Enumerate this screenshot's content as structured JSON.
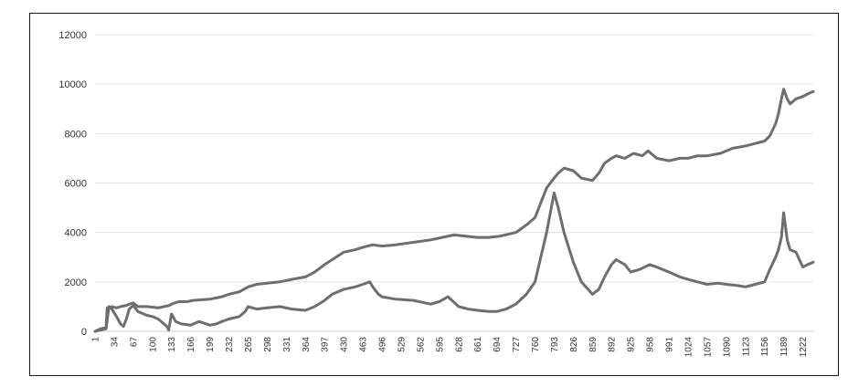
{
  "chart_data": {
    "type": "line",
    "title": "",
    "xlabel": "",
    "ylabel": "",
    "ylim": [
      0,
      12000
    ],
    "xlim": [
      1,
      1240
    ],
    "yticks": [
      "0",
      "2000",
      "4000",
      "6000",
      "8000",
      "10000",
      "12000"
    ],
    "xticks": [
      "1",
      "34",
      "67",
      "100",
      "133",
      "166",
      "199",
      "232",
      "265",
      "298",
      "331",
      "364",
      "397",
      "430",
      "463",
      "496",
      "529",
      "562",
      "595",
      "628",
      "661",
      "694",
      "727",
      "760",
      "793",
      "826",
      "859",
      "892",
      "925",
      "958",
      "991",
      "1024",
      "1057",
      "1090",
      "1123",
      "1156",
      "1189",
      "1222"
    ],
    "grid": "horizontal",
    "legend": "none",
    "line_color": "#6e6e6e",
    "series": [
      {
        "x": [
          1,
          10,
          20,
          22,
          30,
          38,
          45,
          55,
          60,
          67,
          75,
          90,
          110,
          120,
          130,
          133,
          145,
          160,
          170,
          199,
          220,
          232,
          250,
          265,
          280,
          298,
          320,
          340,
          364,
          380,
          397,
          410,
          430,
          450,
          463,
          480,
          496,
          520,
          550,
          580,
          600,
          620,
          640,
          661,
          680,
          700,
          727,
          745,
          760,
          770,
          780,
          793,
          800,
          810,
          826,
          840,
          859,
          870,
          880,
          892,
          900,
          915,
          930,
          945,
          955,
          970,
          991,
          1010,
          1024,
          1040,
          1057,
          1080,
          1100,
          1123,
          1140,
          1156,
          1165,
          1175,
          1180,
          1185,
          1189,
          1195,
          1200,
          1210,
          1222,
          1230,
          1240
        ],
        "values": [
          0,
          100,
          150,
          950,
          1000,
          950,
          1000,
          1050,
          1100,
          1150,
          1000,
          1000,
          950,
          1000,
          1050,
          1100,
          1200,
          1200,
          1250,
          1300,
          1400,
          1500,
          1600,
          1800,
          1900,
          1950,
          2000,
          2100,
          2200,
          2400,
          2700,
          2900,
          3200,
          3300,
          3400,
          3500,
          3450,
          3500,
          3600,
          3700,
          3800,
          3900,
          3850,
          3800,
          3800,
          3850,
          4000,
          4300,
          4600,
          5200,
          5800,
          6200,
          6400,
          6600,
          6500,
          6200,
          6100,
          6400,
          6800,
          7000,
          7100,
          7000,
          7200,
          7100,
          7300,
          7000,
          6900,
          7000,
          7000,
          7100,
          7100,
          7200,
          7400,
          7500,
          7600,
          7700,
          7900,
          8400,
          8800,
          9400,
          9800,
          9400,
          9200,
          9400,
          9500,
          9600,
          9700
        ]
      },
      {
        "x": [
          1,
          10,
          20,
          25,
          30,
          38,
          45,
          50,
          55,
          60,
          67,
          75,
          90,
          100,
          110,
          120,
          125,
          128,
          133,
          140,
          150,
          166,
          180,
          199,
          210,
          220,
          232,
          250,
          260,
          265,
          280,
          298,
          320,
          340,
          364,
          380,
          397,
          410,
          430,
          450,
          463,
          475,
          480,
          490,
          496,
          520,
          550,
          580,
          595,
          610,
          628,
          645,
          661,
          680,
          694,
          710,
          727,
          745,
          760,
          770,
          780,
          788,
          793,
          800,
          810,
          826,
          840,
          859,
          870,
          880,
          892,
          900,
          915,
          925,
          940,
          958,
          970,
          991,
          1010,
          1024,
          1040,
          1057,
          1075,
          1090,
          1110,
          1123,
          1140,
          1156,
          1165,
          1175,
          1180,
          1185,
          1189,
          1195,
          1200,
          1210,
          1222,
          1230,
          1240
        ],
        "values": [
          0,
          50,
          100,
          1000,
          900,
          600,
          300,
          200,
          500,
          900,
          1050,
          800,
          650,
          600,
          500,
          300,
          200,
          50,
          700,
          400,
          300,
          250,
          400,
          250,
          300,
          400,
          500,
          600,
          800,
          1000,
          900,
          950,
          1000,
          900,
          850,
          1000,
          1250,
          1500,
          1700,
          1800,
          1900,
          2000,
          1800,
          1500,
          1400,
          1300,
          1250,
          1100,
          1200,
          1400,
          1000,
          900,
          850,
          800,
          800,
          900,
          1100,
          1500,
          2000,
          3000,
          4000,
          5000,
          5600,
          5000,
          4000,
          2800,
          2000,
          1500,
          1700,
          2200,
          2700,
          2900,
          2700,
          2400,
          2500,
          2700,
          2600,
          2400,
          2200,
          2100,
          2000,
          1900,
          1950,
          1900,
          1850,
          1800,
          1900,
          2000,
          2500,
          3000,
          3300,
          3800,
          4800,
          3700,
          3300,
          3200,
          2600,
          2700,
          2800
        ]
      }
    ]
  }
}
